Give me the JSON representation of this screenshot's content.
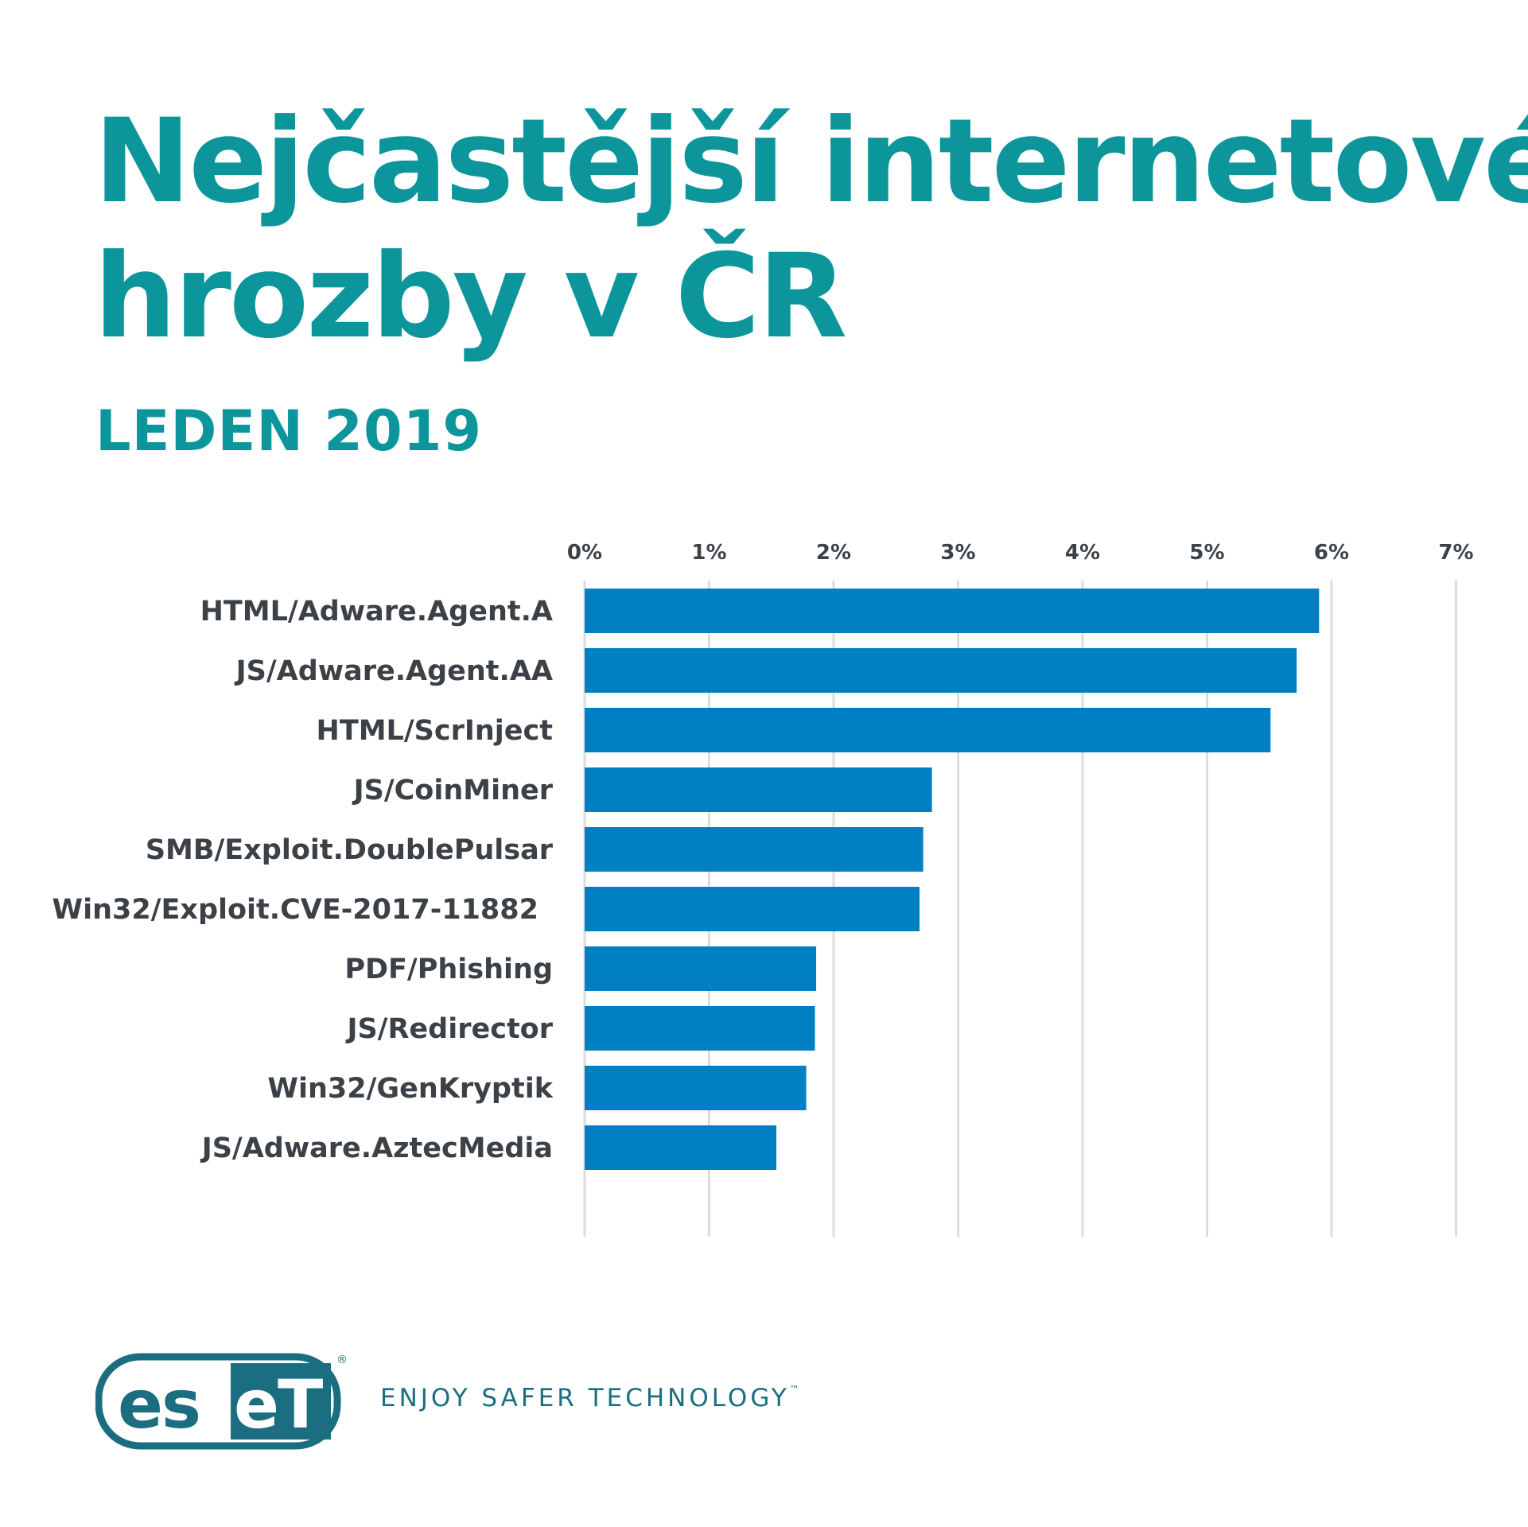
{
  "title": {
    "line1": "Nejčastější internetové",
    "line2": "hrozby v ČR"
  },
  "subtitle": "LEDEN 2019",
  "chart_data": {
    "type": "bar",
    "orientation": "horizontal",
    "categories": [
      "HTML/Adware.Agent.A",
      "JS/Adware.Agent.AA",
      "HTML/ScrInject",
      "JS/CoinMiner",
      "SMB/Exploit.DoublePulsar",
      "Win32/Exploit.CVE-2017-11882",
      "PDF/Phishing",
      "JS/Redirector",
      "Win32/GenKryptik",
      "JS/Adware.AztecMedia"
    ],
    "values": [
      5.9,
      5.72,
      5.51,
      2.79,
      2.72,
      2.69,
      1.86,
      1.85,
      1.78,
      1.54
    ],
    "xlim": [
      0,
      7
    ],
    "xticks": [
      0,
      1,
      2,
      3,
      4,
      5,
      6,
      7
    ],
    "tick_labels": [
      "0%",
      "1%",
      "2%",
      "3%",
      "4%",
      "5%",
      "6%",
      "7%"
    ],
    "x_axis_position": "top",
    "grid": true,
    "bar_color": "#0080c2",
    "title": "Nejčastější internetové hrozby v ČR",
    "subtitle": "LEDEN 2019",
    "xlabel": "",
    "ylabel": ""
  },
  "footer": {
    "logo_text": "eset",
    "registered": "®",
    "tagline": "ENJOY SAFER TECHNOLOGY",
    "tagline_tm": "™"
  },
  "colors": {
    "title": "#0c969b",
    "bar": "#0080c2",
    "label": "#3b4147",
    "grid": "#dcdcdc",
    "logo": "#1b6e80"
  }
}
